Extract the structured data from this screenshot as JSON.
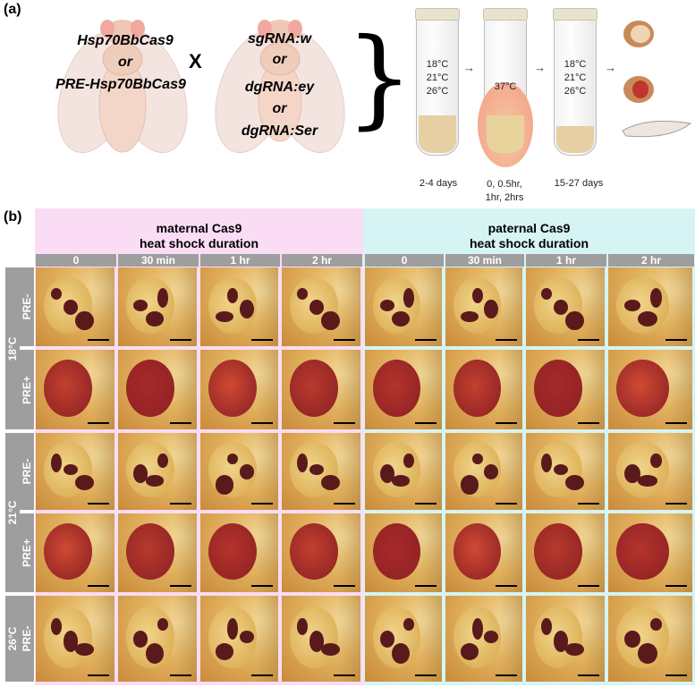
{
  "panel_a": {
    "label": "(a)",
    "cross_left": {
      "line1": "Hsp70BbCas9",
      "line2": "or",
      "line3": "PRE-Hsp70BbCas9"
    },
    "cross_symbol": "X",
    "cross_right": {
      "line1": "sgRNA:w",
      "line2": "or",
      "line3": "dgRNA:ey",
      "line4": "or",
      "line5": "dgRNA:Ser"
    },
    "brace": "}",
    "tubes": [
      {
        "temps": [
          "18°C",
          "21°C",
          "26°C"
        ],
        "caption": "2-4 days"
      },
      {
        "temps": [
          "37°C"
        ],
        "caption_lines": [
          "0, 0.5hr,",
          "1hr, 2hrs"
        ]
      },
      {
        "temps": [
          "18°C",
          "21°C",
          "26°C"
        ],
        "caption": "15-27 days"
      }
    ],
    "arrow": "→"
  },
  "panel_b": {
    "label": "(b)",
    "maternal": {
      "line1": "maternal Cas9",
      "line2": "heat shock duration",
      "bg": "#fbdcf5"
    },
    "paternal": {
      "line1": "paternal Cas9",
      "line2": "heat shock duration",
      "bg": "#d6f4f4"
    },
    "columns": [
      "0",
      "30 min",
      "1 hr",
      "2 hr",
      "0",
      "30 min",
      "1 hr",
      "2 hr"
    ],
    "temps": [
      "18°C",
      "21°C",
      "26°C"
    ],
    "rows": [
      "PRE-",
      "PRE+",
      "PRE-",
      "PRE+",
      "PRE-"
    ]
  }
}
